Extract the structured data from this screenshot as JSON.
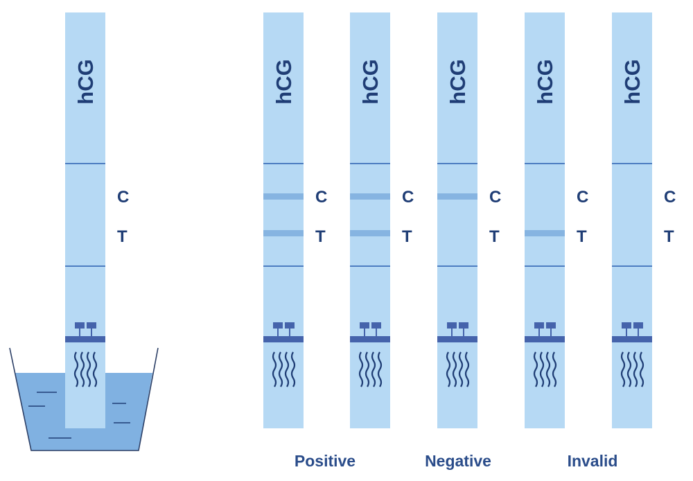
{
  "strip_text": "hCG",
  "control_label": "C",
  "test_label": "T",
  "colors": {
    "strip": "#b6d9f4",
    "band": "#86b4e1",
    "line": "#4d7dc1",
    "text": "#1f3d75",
    "water": "#80b1e1",
    "pad": "#4563ab"
  },
  "dipping_strip": {
    "control_band": false,
    "test_band": false
  },
  "strips": [
    {
      "control_band": true,
      "test_band": true
    },
    {
      "control_band": true,
      "test_band": true
    },
    {
      "control_band": true,
      "test_band": false
    },
    {
      "control_band": false,
      "test_band": true
    },
    {
      "control_band": false,
      "test_band": false
    }
  ],
  "result_labels": [
    "Positive",
    "Negative",
    "Invalid"
  ]
}
